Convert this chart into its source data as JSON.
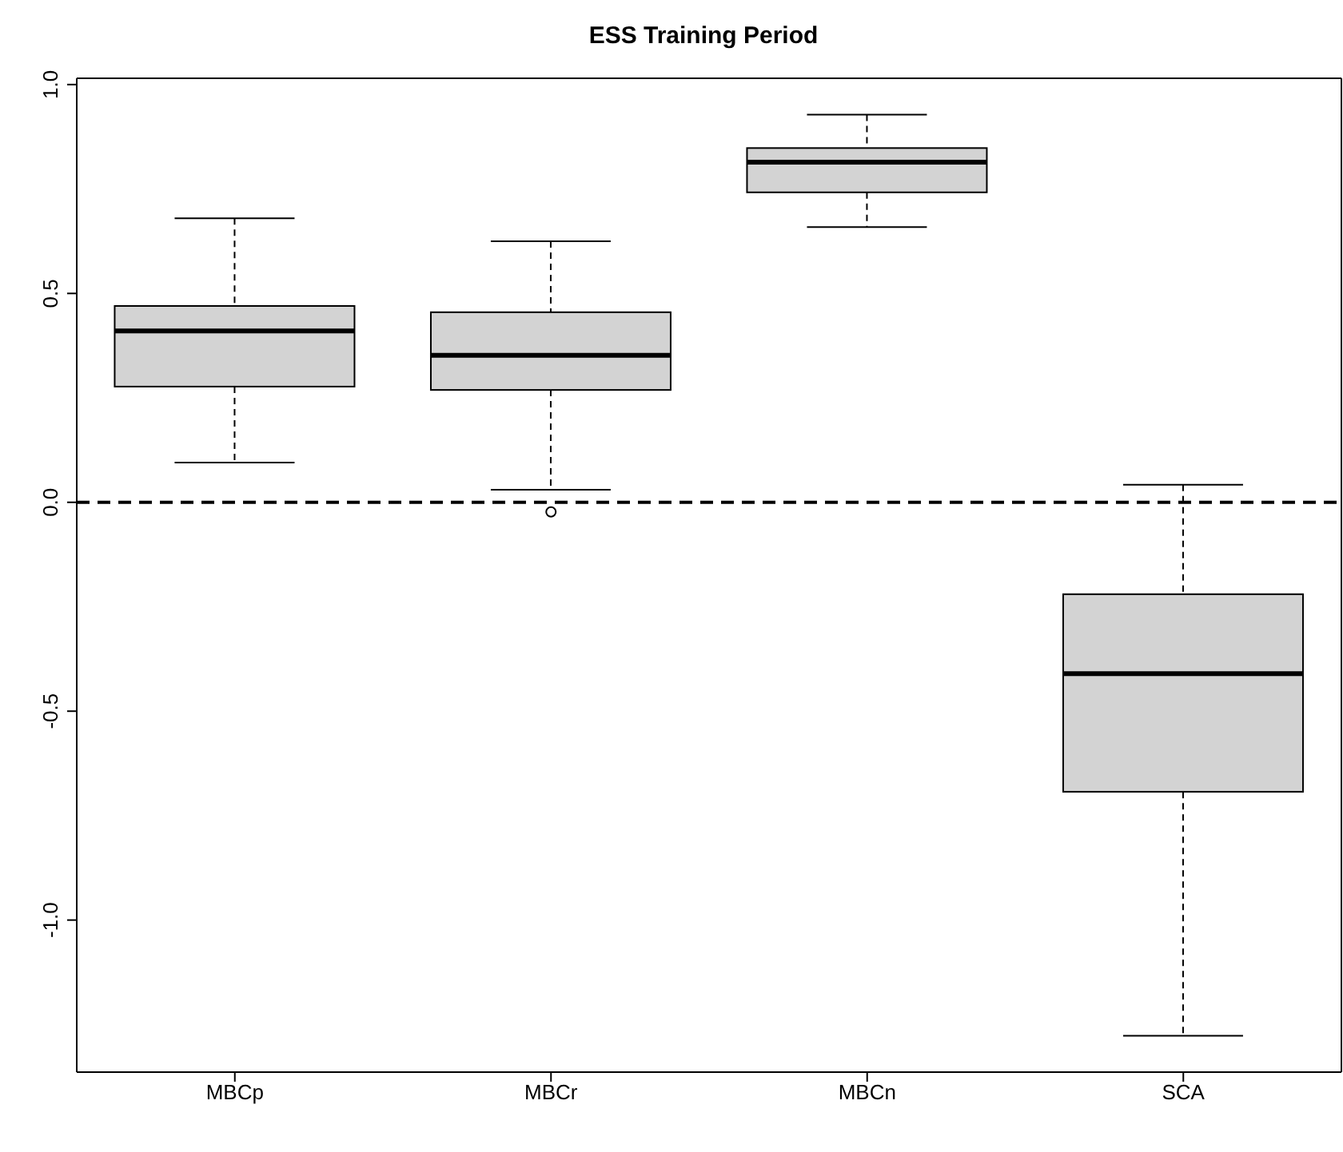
{
  "chart_data": {
    "type": "box",
    "title": "ESS Training Period",
    "categories": [
      "MBCp",
      "MBCr",
      "MBCn",
      "SCA"
    ],
    "boxes": [
      {
        "low": 0.095,
        "q1": 0.277,
        "median": 0.41,
        "q3": 0.47,
        "high": 0.68
      },
      {
        "low": 0.03,
        "q1": 0.269,
        "median": 0.352,
        "q3": 0.455,
        "high": 0.625,
        "outliers": [
          -0.023
        ]
      },
      {
        "low": 0.659,
        "q1": 0.742,
        "median": 0.814,
        "q3": 0.848,
        "high": 0.928
      },
      {
        "low": -1.277,
        "q1": -0.693,
        "median": -0.41,
        "q3": -0.22,
        "high": 0.042
      }
    ],
    "color": "#d3d3d3",
    "ylim": [
      -1.364,
      1.015
    ],
    "yticks": [
      {
        "value": -1,
        "label": "-1.0"
      },
      -0.5,
      {
        "value": 0,
        "label": "0.0"
      },
      0.5,
      {
        "value": 1,
        "label": "1.0"
      }
    ],
    "ref_lines": [
      {
        "axis": "y",
        "value": 0,
        "color": "#000000",
        "line_style": "dashed"
      }
    ],
    "grid": false,
    "legend": false
  }
}
